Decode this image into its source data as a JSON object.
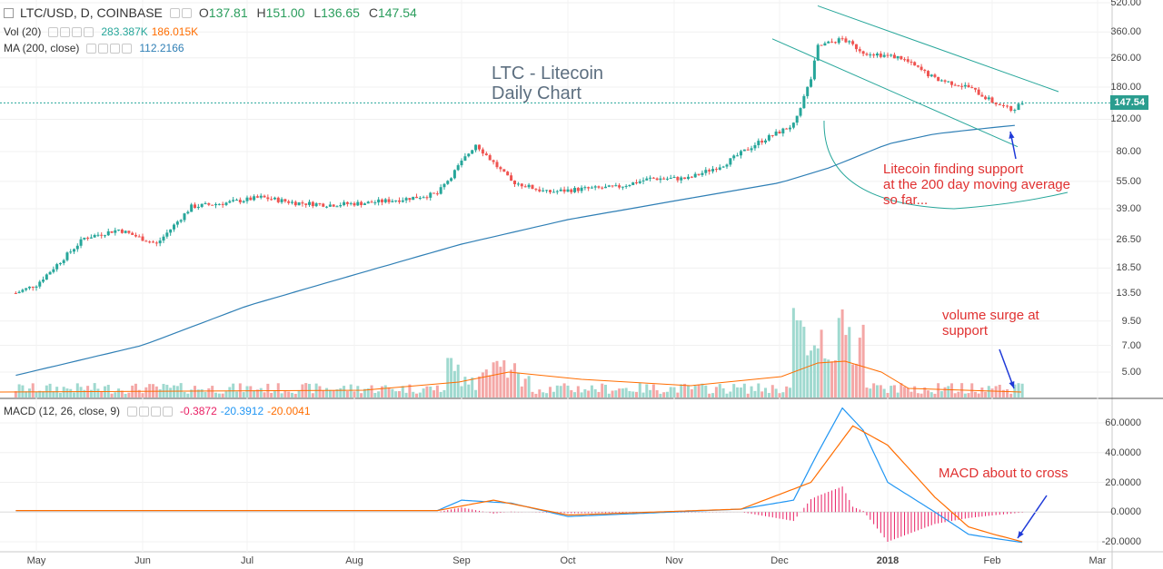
{
  "header": {
    "symbol": "LTC/USD, D, COINBASE",
    "open_label": "O",
    "open": "137.81",
    "high_label": "H",
    "high": "151.00",
    "low_label": "L",
    "low": "136.65",
    "close_label": "C",
    "close": "147.54"
  },
  "volume_legend": {
    "label": "Vol (20)",
    "value1": "283.387K",
    "value2": "186.015K"
  },
  "ma_legend": {
    "label": "MA (200, close)",
    "value": "112.2166"
  },
  "macd_legend": {
    "label": "MACD (12, 26, close, 9)",
    "hist": "-0.3872",
    "macd": "-20.3912",
    "signal": "-20.0041"
  },
  "last_price_flag": "147.54",
  "annotations": {
    "title_line1": "LTC - Litecoin",
    "title_line2": "Daily Chart",
    "support_line1": "Litecoin finding support",
    "support_line2": "at the 200 day moving average",
    "support_line3": "so far...",
    "volume_line1": "volume surge at",
    "volume_line2": "support",
    "macd_text": "MACD about to cross"
  },
  "colors": {
    "up": "#26a69a",
    "down": "#ef5350",
    "ma": "#2f7fb5",
    "macd": "#2196f3",
    "signal": "#ff6d00",
    "hist": "#e91e63",
    "annotation": "#e03131",
    "channel": "#26a69a"
  },
  "chart_data": [
    {
      "type": "candlestick",
      "title": "LTC/USD, D, COINBASE",
      "scale": "log",
      "y_ticks": [
        "520.00",
        "360.00",
        "260.00",
        "180.00",
        "120.00",
        "80.00",
        "55.00",
        "39.00",
        "26.50",
        "18.50",
        "13.50",
        "9.50",
        "7.00",
        "5.00"
      ],
      "x_ticks": [
        "May",
        "Jun",
        "Jul",
        "Aug",
        "Sep",
        "Oct",
        "Nov",
        "Dec",
        "2018",
        "Feb",
        "Mar"
      ],
      "price_anchors": {
        "x": [
          "2017-04-25",
          "2017-05-01",
          "2017-05-15",
          "2017-05-25",
          "2017-06-05",
          "2017-06-15",
          "2017-06-25",
          "2017-07-05",
          "2017-07-15",
          "2017-07-25",
          "2017-08-05",
          "2017-08-15",
          "2017-08-25",
          "2017-09-01",
          "2017-09-05",
          "2017-09-15",
          "2017-09-25",
          "2017-10-05",
          "2017-10-15",
          "2017-10-25",
          "2017-11-05",
          "2017-11-15",
          "2017-11-25",
          "2017-12-05",
          "2017-12-10",
          "2017-12-12",
          "2017-12-19",
          "2017-12-25",
          "2018-01-05",
          "2018-01-15",
          "2018-01-25",
          "2018-02-01",
          "2018-02-06",
          "2018-02-09"
        ],
        "close": [
          13.5,
          15,
          27,
          30,
          25,
          40,
          42,
          45,
          42,
          41,
          42,
          44,
          47,
          70,
          88,
          55,
          48,
          50,
          51,
          57,
          57,
          68,
          90,
          112,
          200,
          300,
          330,
          280,
          260,
          200,
          180,
          150,
          135,
          147.54
        ]
      },
      "ma200": {
        "x": [
          "2017-04-25",
          "2017-06-01",
          "2017-07-01",
          "2017-08-01",
          "2017-09-01",
          "2017-10-01",
          "2017-11-01",
          "2017-12-01",
          "2017-12-15",
          "2018-01-01",
          "2018-01-15",
          "2018-02-09"
        ],
        "value": [
          4.8,
          7,
          11.5,
          17,
          25,
          34,
          43,
          54,
          65,
          88,
          100,
          112.2166
        ]
      },
      "last_price": 147.54
    },
    {
      "type": "bar",
      "title": "Vol (20)",
      "y_ticks": [],
      "note": "volume surge near the December 2017 top, small bars at support in Feb"
    },
    {
      "type": "line",
      "title": "MACD (12, 26, close, 9)",
      "y_ticks": [
        "60.0000",
        "40.0000",
        "20.0000",
        "0.0000",
        "-20.0000"
      ],
      "ylim": [
        -25,
        70
      ],
      "series": [
        {
          "name": "MACD",
          "x": [
            "2017-04-25",
            "2017-08-25",
            "2017-09-01",
            "2017-09-15",
            "2017-10-01",
            "2017-11-20",
            "2017-12-05",
            "2017-12-12",
            "2017-12-19",
            "2017-12-25",
            "2018-01-01",
            "2018-01-15",
            "2018-01-25",
            "2018-02-09"
          ],
          "values": [
            1,
            1,
            8,
            6,
            -3,
            2,
            8,
            40,
            70,
            55,
            20,
            0,
            -15,
            -20.3912
          ]
        },
        {
          "name": "Signal",
          "x": [
            "2017-04-25",
            "2017-08-25",
            "2017-09-10",
            "2017-10-01",
            "2017-11-20",
            "2017-12-10",
            "2017-12-22",
            "2018-01-01",
            "2018-01-15",
            "2018-01-25",
            "2018-02-09"
          ],
          "values": [
            1,
            1,
            8,
            -2,
            2,
            20,
            58,
            45,
            10,
            -10,
            -20.0041
          ]
        }
      ]
    }
  ]
}
